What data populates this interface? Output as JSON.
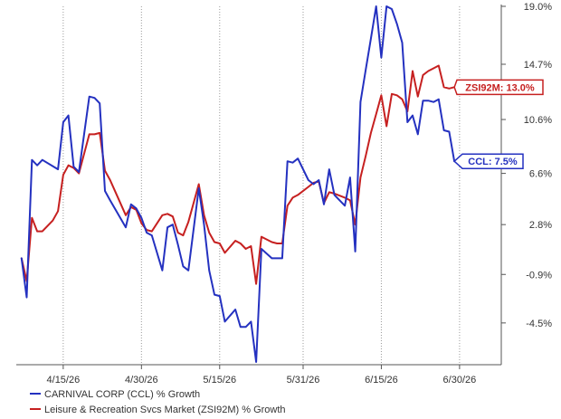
{
  "chart_data": {
    "type": "line",
    "title": "",
    "xlabel": "",
    "ylabel": "",
    "y_axis_side": "right",
    "grid": "vertical-dotted",
    "legend_position": "bottom-left",
    "ylim": [
      -7.6,
      19.0
    ],
    "yticks": [
      19.0,
      14.7,
      10.6,
      6.6,
      2.8,
      -0.9,
      -4.5
    ],
    "ytick_labels": [
      "19.0%",
      "14.7%",
      "10.6%",
      "6.6%",
      "2.8%",
      "-0.9%",
      "-4.5%"
    ],
    "xlim": [
      "2026-04-06",
      "2026-07-08"
    ],
    "xticks": [
      "2026-04-15",
      "2026-04-30",
      "2026-05-15",
      "2026-05-31",
      "2026-06-15",
      "2026-06-30"
    ],
    "xtick_labels": [
      "4/15/26",
      "4/30/26",
      "5/15/26",
      "5/31/26",
      "6/15/26",
      "6/30/26"
    ],
    "series": [
      {
        "name": "CARNIVAL CORP (CCL) % Growth",
        "color": "#2431c0",
        "callout": "CCL: 7.5%",
        "points": [
          [
            "2026-04-07",
            0.3
          ],
          [
            "2026-04-08",
            -2.6
          ],
          [
            "2026-04-09",
            7.6
          ],
          [
            "2026-04-10",
            7.2
          ],
          [
            "2026-04-11",
            7.6
          ],
          [
            "2026-04-14",
            6.9
          ],
          [
            "2026-04-15",
            10.4
          ],
          [
            "2026-04-16",
            10.9
          ],
          [
            "2026-04-17",
            7.1
          ],
          [
            "2026-04-18",
            6.7
          ],
          [
            "2026-04-20",
            12.3
          ],
          [
            "2026-04-21",
            12.2
          ],
          [
            "2026-04-22",
            11.8
          ],
          [
            "2026-04-23",
            5.3
          ],
          [
            "2026-04-24",
            4.6
          ],
          [
            "2026-04-27",
            2.6
          ],
          [
            "2026-04-28",
            4.3
          ],
          [
            "2026-04-29",
            4.0
          ],
          [
            "2026-04-30",
            3.3
          ],
          [
            "2026-05-01",
            2.2
          ],
          [
            "2026-05-02",
            2.0
          ],
          [
            "2026-05-04",
            -0.6
          ],
          [
            "2026-05-05",
            2.6
          ],
          [
            "2026-05-06",
            2.8
          ],
          [
            "2026-05-07",
            1.3
          ],
          [
            "2026-05-08",
            -0.3
          ],
          [
            "2026-05-09",
            -0.6
          ],
          [
            "2026-05-11",
            5.5
          ],
          [
            "2026-05-12",
            2.8
          ],
          [
            "2026-05-13",
            -0.6
          ],
          [
            "2026-05-14",
            -2.4
          ],
          [
            "2026-05-15",
            -2.5
          ],
          [
            "2026-05-16",
            -4.4
          ],
          [
            "2026-05-18",
            -3.5
          ],
          [
            "2026-05-19",
            -4.8
          ],
          [
            "2026-05-20",
            -4.8
          ],
          [
            "2026-05-21",
            -4.4
          ],
          [
            "2026-05-22",
            -7.4
          ],
          [
            "2026-05-23",
            1.0
          ],
          [
            "2026-05-25",
            0.3
          ],
          [
            "2026-05-26",
            0.3
          ],
          [
            "2026-05-27",
            0.3
          ],
          [
            "2026-05-28",
            7.5
          ],
          [
            "2026-05-29",
            7.4
          ],
          [
            "2026-05-30",
            7.7
          ],
          [
            "2026-06-01",
            6.1
          ],
          [
            "2026-06-02",
            5.8
          ],
          [
            "2026-06-03",
            6.1
          ],
          [
            "2026-06-04",
            4.3
          ],
          [
            "2026-06-05",
            6.9
          ],
          [
            "2026-06-06",
            5.0
          ],
          [
            "2026-06-08",
            4.2
          ],
          [
            "2026-06-09",
            6.3
          ],
          [
            "2026-06-10",
            0.8
          ],
          [
            "2026-06-11",
            11.9
          ],
          [
            "2026-06-12",
            14.3
          ],
          [
            "2026-06-13",
            16.6
          ],
          [
            "2026-06-14",
            19.0
          ],
          [
            "2026-06-15",
            15.2
          ],
          [
            "2026-06-16",
            19.0
          ],
          [
            "2026-06-17",
            18.8
          ],
          [
            "2026-06-18",
            17.7
          ],
          [
            "2026-06-19",
            16.3
          ],
          [
            "2026-06-20",
            10.4
          ],
          [
            "2026-06-21",
            10.9
          ],
          [
            "2026-06-22",
            9.5
          ],
          [
            "2026-06-23",
            12.0
          ],
          [
            "2026-06-24",
            12.0
          ],
          [
            "2026-06-25",
            11.9
          ],
          [
            "2026-06-26",
            12.1
          ],
          [
            "2026-06-27",
            9.8
          ],
          [
            "2026-06-28",
            9.7
          ],
          [
            "2026-06-29",
            7.5
          ]
        ]
      },
      {
        "name": "Leisure & Recreation Svcs Market (ZSI92M) % Growth",
        "color": "#c62020",
        "callout": "ZSI92M: 13.0%",
        "points": [
          [
            "2026-04-07",
            0.3
          ],
          [
            "2026-04-08",
            -1.4
          ],
          [
            "2026-04-09",
            3.3
          ],
          [
            "2026-04-10",
            2.3
          ],
          [
            "2026-04-11",
            2.3
          ],
          [
            "2026-04-13",
            3.1
          ],
          [
            "2026-04-14",
            3.8
          ],
          [
            "2026-04-15",
            6.5
          ],
          [
            "2026-04-16",
            7.2
          ],
          [
            "2026-04-17",
            7.0
          ],
          [
            "2026-04-18",
            6.6
          ],
          [
            "2026-04-20",
            9.5
          ],
          [
            "2026-04-21",
            9.5
          ],
          [
            "2026-04-22",
            9.6
          ],
          [
            "2026-04-23",
            6.8
          ],
          [
            "2026-04-24",
            6.1
          ],
          [
            "2026-04-27",
            3.5
          ],
          [
            "2026-04-28",
            4.1
          ],
          [
            "2026-04-29",
            3.9
          ],
          [
            "2026-04-30",
            2.9
          ],
          [
            "2026-05-01",
            2.4
          ],
          [
            "2026-05-02",
            2.3
          ],
          [
            "2026-05-04",
            3.5
          ],
          [
            "2026-05-05",
            3.6
          ],
          [
            "2026-05-06",
            3.4
          ],
          [
            "2026-05-07",
            2.2
          ],
          [
            "2026-05-08",
            2.0
          ],
          [
            "2026-05-09",
            3.0
          ],
          [
            "2026-05-11",
            5.8
          ],
          [
            "2026-05-12",
            3.5
          ],
          [
            "2026-05-13",
            2.2
          ],
          [
            "2026-05-14",
            1.5
          ],
          [
            "2026-05-15",
            1.4
          ],
          [
            "2026-05-16",
            0.7
          ],
          [
            "2026-05-18",
            1.6
          ],
          [
            "2026-05-19",
            1.4
          ],
          [
            "2026-05-20",
            1.0
          ],
          [
            "2026-05-21",
            1.2
          ],
          [
            "2026-05-22",
            -1.6
          ],
          [
            "2026-05-23",
            1.9
          ],
          [
            "2026-05-25",
            1.5
          ],
          [
            "2026-05-26",
            1.4
          ],
          [
            "2026-05-27",
            1.4
          ],
          [
            "2026-05-28",
            4.2
          ],
          [
            "2026-05-29",
            4.8
          ],
          [
            "2026-05-30",
            5.0
          ],
          [
            "2026-06-01",
            5.6
          ],
          [
            "2026-06-02",
            5.9
          ],
          [
            "2026-06-03",
            6.0
          ],
          [
            "2026-06-04",
            4.4
          ],
          [
            "2026-06-05",
            5.2
          ],
          [
            "2026-06-06",
            5.1
          ],
          [
            "2026-06-08",
            4.8
          ],
          [
            "2026-06-09",
            4.6
          ],
          [
            "2026-06-10",
            2.8
          ],
          [
            "2026-06-11",
            6.3
          ],
          [
            "2026-06-12",
            7.9
          ],
          [
            "2026-06-13",
            9.6
          ],
          [
            "2026-06-14",
            11.0
          ],
          [
            "2026-06-15",
            12.4
          ],
          [
            "2026-06-16",
            10.1
          ],
          [
            "2026-06-17",
            12.5
          ],
          [
            "2026-06-18",
            12.4
          ],
          [
            "2026-06-19",
            12.1
          ],
          [
            "2026-06-20",
            11.2
          ],
          [
            "2026-06-21",
            14.2
          ],
          [
            "2026-06-22",
            12.3
          ],
          [
            "2026-06-23",
            13.9
          ],
          [
            "2026-06-24",
            14.2
          ],
          [
            "2026-06-25",
            14.4
          ],
          [
            "2026-06-26",
            14.6
          ],
          [
            "2026-06-27",
            13.0
          ],
          [
            "2026-06-28",
            12.9
          ],
          [
            "2026-06-29",
            13.0
          ]
        ]
      }
    ]
  }
}
